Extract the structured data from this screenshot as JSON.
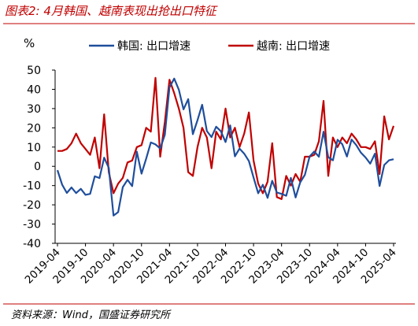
{
  "chart_data": {
    "type": "line",
    "title": "图表2: 4月韩国、越南表现出抢出口特征",
    "y_label": "%",
    "source": "资料来源：Wind，国盛证券研究所",
    "categories": [
      "2019-04",
      null,
      null,
      null,
      null,
      null,
      "2019-10",
      null,
      null,
      null,
      null,
      null,
      "2020-04",
      null,
      null,
      null,
      null,
      null,
      "2020-10",
      null,
      null,
      null,
      null,
      null,
      "2021-04",
      null,
      null,
      null,
      null,
      null,
      "2021-10",
      null,
      null,
      null,
      null,
      null,
      "2022-04",
      null,
      null,
      null,
      null,
      null,
      "2022-10",
      null,
      null,
      null,
      null,
      null,
      "2023-04",
      null,
      null,
      null,
      null,
      null,
      "2023-10",
      null,
      null,
      null,
      null,
      null,
      "2024-04",
      null,
      null,
      null,
      null,
      null,
      "2024-10",
      null,
      null,
      null,
      null,
      null,
      "2025-04"
    ],
    "series": [
      {
        "name": "韩国: 出口增速",
        "color": "#1f4e9c",
        "values": [
          -2,
          -9.5,
          -13.8,
          -11,
          -13.9,
          -11.7,
          -14.8,
          -14.3,
          -5.2,
          -6.1,
          4.5,
          -0.8,
          -25.6,
          -23.8,
          -10.8,
          -7,
          -10.3,
          7.6,
          -3.8,
          4,
          12.4,
          11.4,
          9.3,
          16.4,
          41.1,
          45.6,
          39.8,
          29.6,
          34.9,
          16.7,
          24,
          32,
          18.3,
          15.2,
          20.6,
          18.2,
          12.6,
          21.3,
          5.2,
          9.2,
          6.6,
          2.7,
          -5.8,
          -14,
          -9.6,
          -16.4,
          -7.5,
          -13.6,
          -14.3,
          -15.3,
          -6,
          -16.2,
          -8.3,
          -4.4,
          5.1,
          7.7,
          5,
          18,
          4.7,
          3.1,
          13.8,
          11.5,
          5.1,
          13.9,
          11,
          7.1,
          4.6,
          1.4,
          6.6,
          -10.2,
          0.7,
          3.1,
          3.7
        ]
      },
      {
        "name": "越南: 出口增速",
        "color": "#c00000",
        "values": [
          8,
          8,
          9,
          12,
          17,
          12,
          9,
          6,
          15,
          -1,
          27,
          -3,
          -14,
          -9,
          -6,
          2,
          3,
          10,
          11,
          20,
          18,
          46,
          5,
          23,
          45,
          38,
          30,
          20,
          -3,
          -5,
          10,
          20,
          15,
          -1,
          18,
          14,
          30,
          15,
          20,
          10,
          17,
          28,
          3,
          -9,
          -14,
          -8,
          12,
          -16,
          -17,
          -5,
          -10,
          -4,
          -8,
          5,
          5,
          6,
          13,
          34,
          -5,
          15,
          10,
          15,
          12,
          17,
          14,
          10,
          10,
          9,
          13,
          -4,
          26,
          14,
          21
        ]
      }
    ],
    "ylim": [
      -40,
      50
    ],
    "yticks": [
      -40,
      -30,
      -20,
      -10,
      0,
      10,
      20,
      30,
      40,
      50
    ]
  }
}
